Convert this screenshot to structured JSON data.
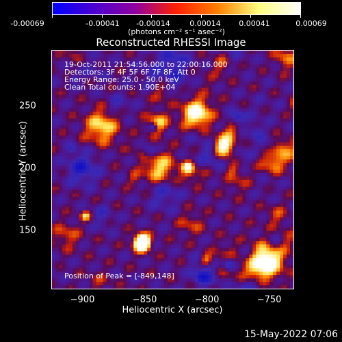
{
  "colorbar": {
    "tick_labels": [
      "-0.00069",
      "-0.00041",
      "-0.00014",
      "0.00014",
      "0.00041",
      "0.00069"
    ],
    "units": "(photons cm⁻² s⁻¹ asec⁻²)",
    "colors": [
      "#0000ff",
      "#4a00d0",
      "#9000a0",
      "#ff2000",
      "#ff8000",
      "#ffff80",
      "#ffffff"
    ]
  },
  "chart_data": {
    "type": "heatmap",
    "title": "Reconstructed RHESSI Image",
    "xlabel": "Heliocentric X (arcsec)",
    "ylabel": "Heliocentric Y (arcsec)",
    "xlim": [
      -925,
      -730
    ],
    "ylim": [
      103,
      295
    ],
    "x_ticks": [
      -900,
      -850,
      -800,
      -750
    ],
    "x_tick_labels": [
      "−900",
      "−850",
      "−800",
      "−750"
    ],
    "y_ticks": [
      150,
      200,
      250
    ],
    "y_tick_labels": [
      "150",
      "200",
      "250"
    ],
    "value_range": [
      -0.00069,
      0.00069
    ],
    "peak": {
      "x": -849,
      "y": 148
    },
    "grid": false
  },
  "annotations": {
    "time": "19-Oct-2011 21:54:56.000 to 22:00:16.000",
    "detectors": "Detectors: 3F 4F 5F 6F 7F 8F, Att 0",
    "energy": "Energy Range: 25.0 - 50.0 keV",
    "clean": "Clean     Total counts: 1.90E+04",
    "peak": "Position of Peak = [-849,148]"
  },
  "footer": {
    "date": "15-May-2022 07:06"
  }
}
